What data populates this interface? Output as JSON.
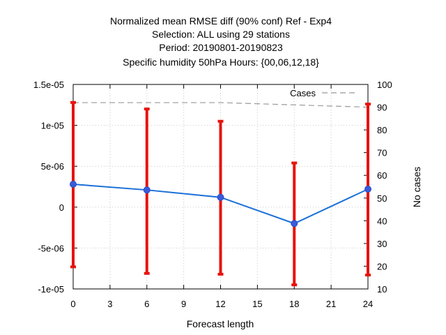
{
  "chart_data": {
    "type": "line",
    "title_lines": [
      "Normalized mean RMSE diff (90% conf) Ref - Exp4",
      "Selection: ALL using    29 stations",
      "Period: 20190801-20190823",
      "Specific humidity 50hPa   Hours: {00,06,12,18}"
    ],
    "xlabel": "Forecast length",
    "ylabel": "",
    "y2label": "No cases",
    "x_ticks": [
      "0",
      "3",
      "6",
      "9",
      "12",
      "15",
      "18",
      "21",
      "24"
    ],
    "y_ticks": [
      "1.5e-05",
      "1e-05",
      "5e-06",
      "0",
      "-5e-06",
      "-1e-05"
    ],
    "y2_ticks": [
      "100",
      "90",
      "80",
      "70",
      "60",
      "50",
      "40",
      "30",
      "20",
      "10"
    ],
    "xlim": [
      0,
      24
    ],
    "ylim": [
      -1e-05,
      1.5e-05
    ],
    "y2lim": [
      10,
      100
    ],
    "grid": true,
    "legend_position": "top-right",
    "series": [
      {
        "color": "#1a6fd8",
        "x": [
          0,
          6,
          12,
          18,
          24
        ],
        "y": [
          2.8e-06,
          2.1e-06,
          1.2e-06,
          -2e-06,
          2.2e-06
        ],
        "err_low": [
          -7.3e-06,
          -8.1e-06,
          -8.2e-06,
          -9.5e-06,
          -8.3e-06
        ],
        "err_high": [
          1.28e-05,
          1.2e-05,
          1.05e-05,
          5.4e-06,
          1.26e-05
        ],
        "err_color": "#e8120c"
      },
      {
        "name": "Cases",
        "axis": "y2",
        "color": "#999999",
        "x": [
          0,
          6,
          12,
          18,
          24
        ],
        "y": [
          92,
          92,
          92,
          91,
          90
        ]
      }
    ]
  }
}
